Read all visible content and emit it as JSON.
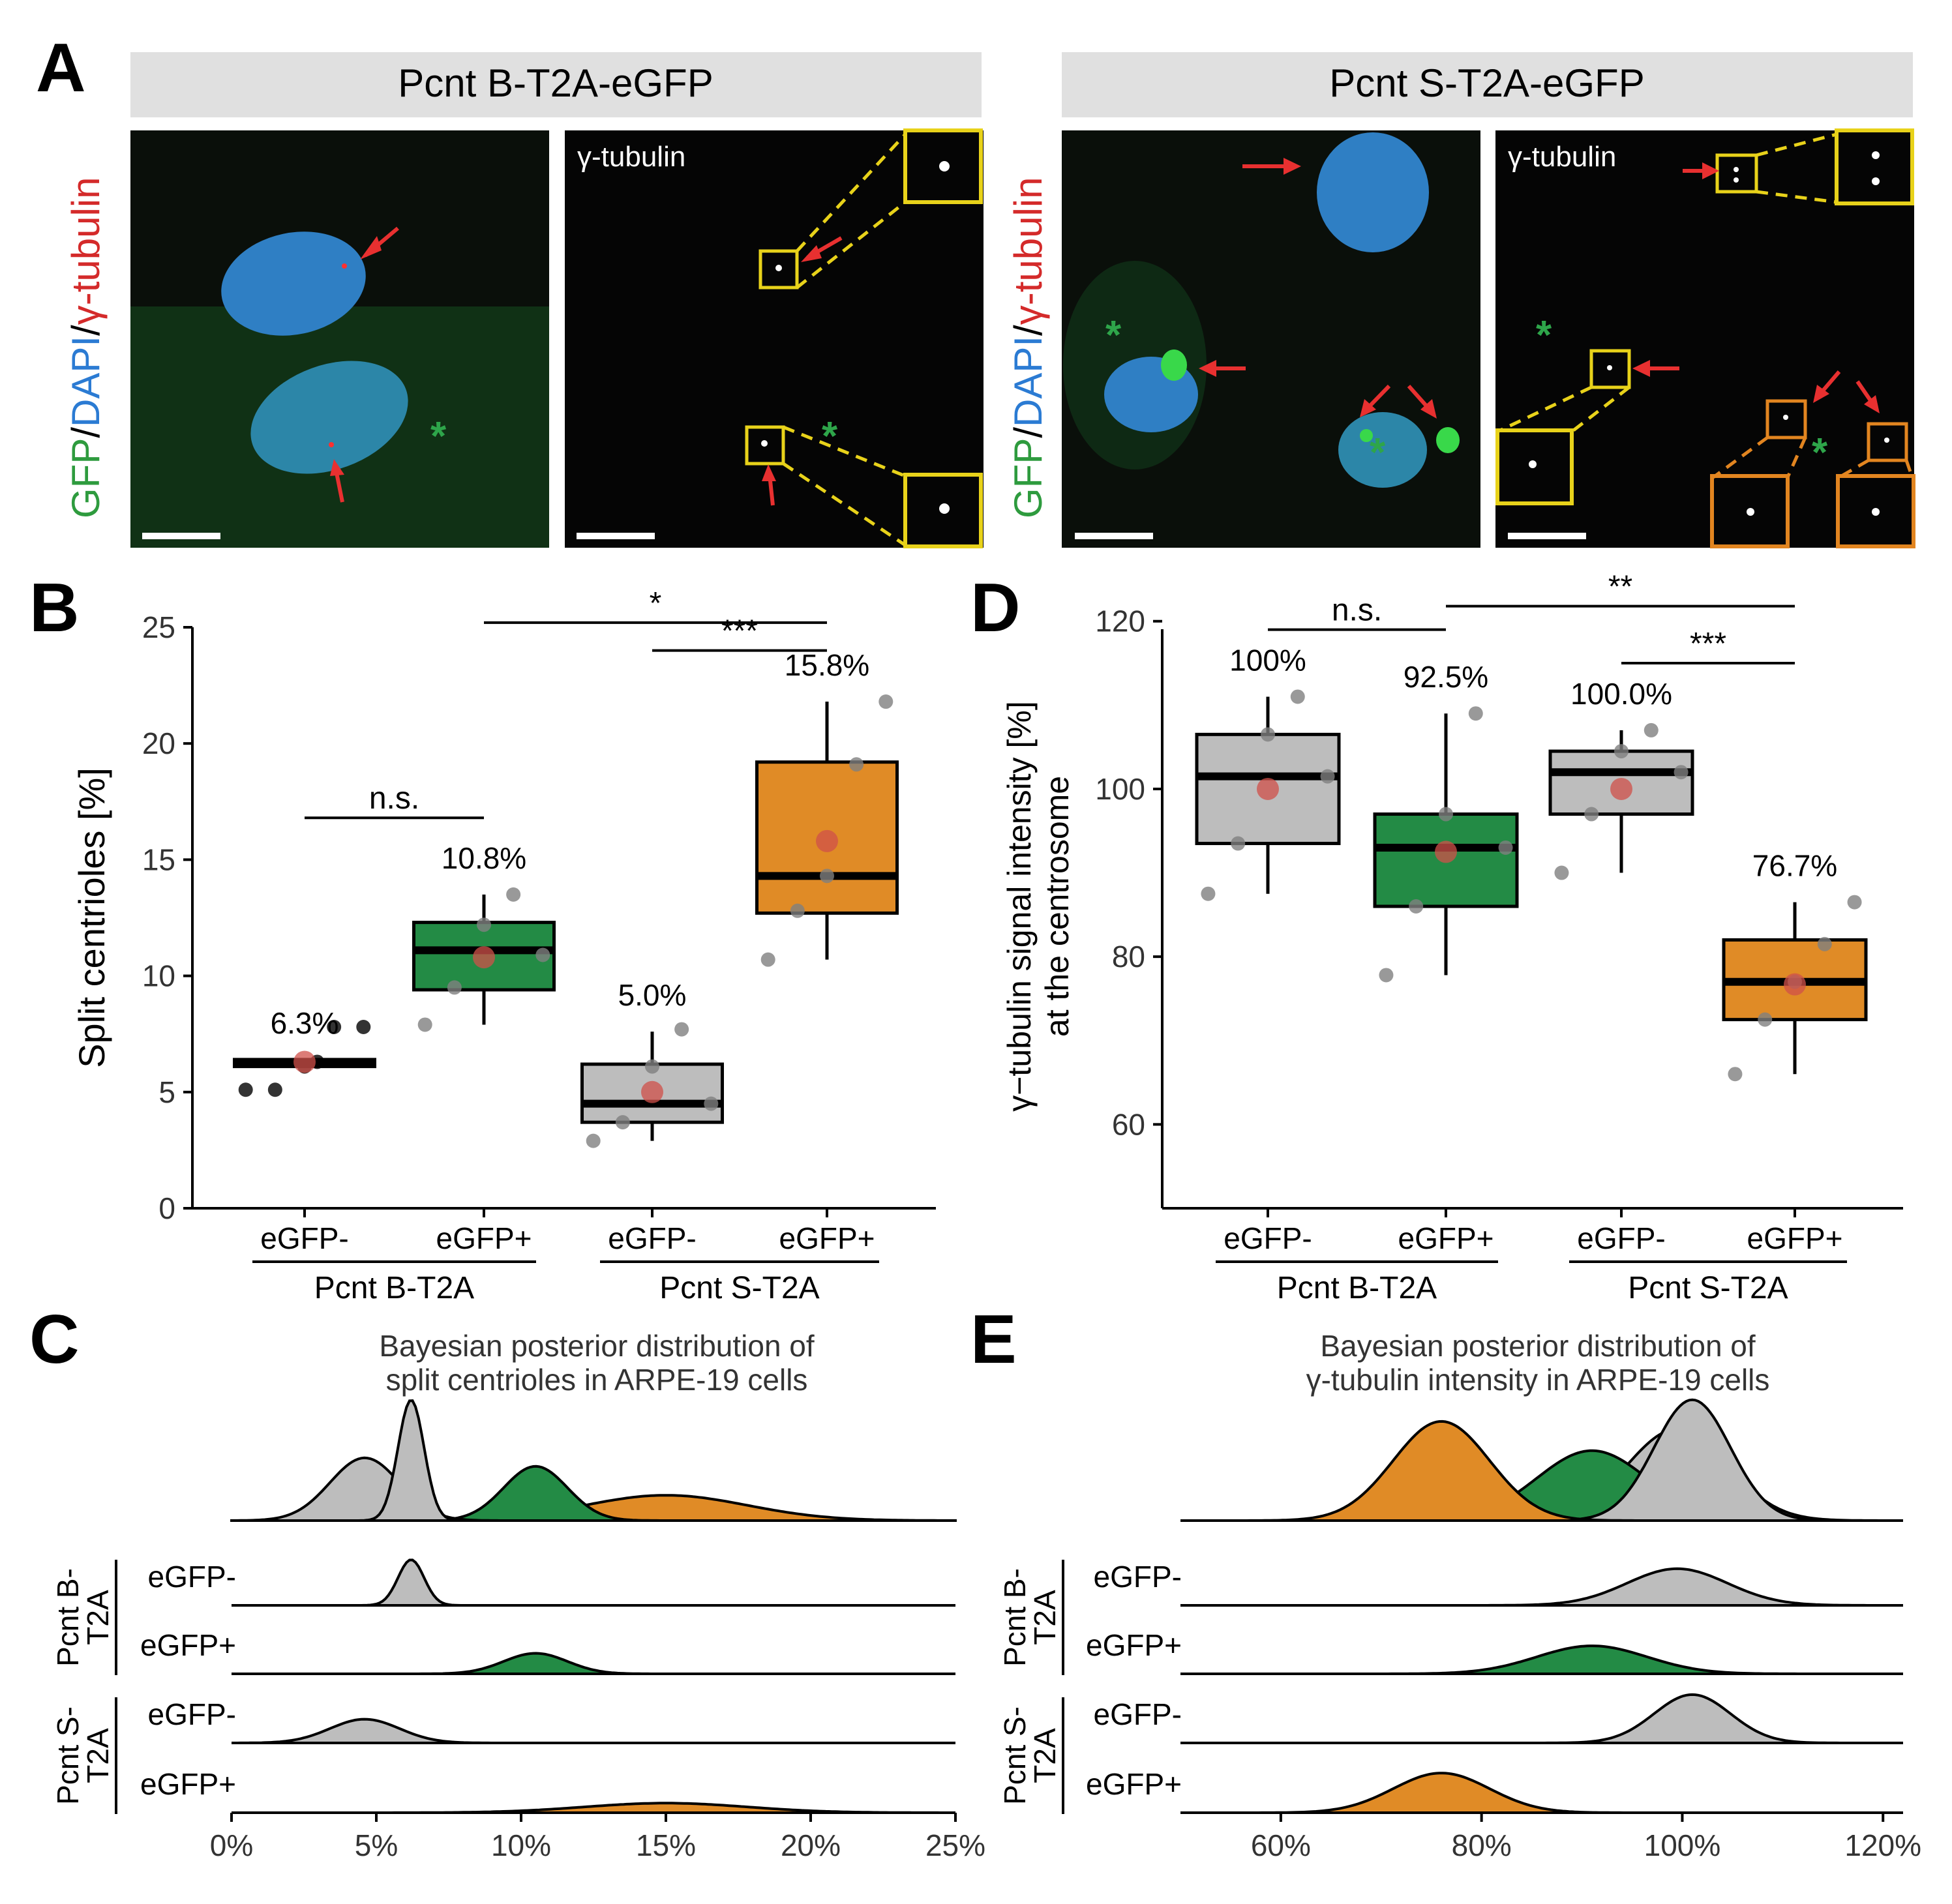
{
  "panel_a": {
    "letter": "A",
    "headers": [
      "Pcnt B-T2A-eGFP",
      "Pcnt S-T2A-eGFP"
    ],
    "side_label": {
      "green": "GFP",
      "sep1": "/",
      "blue": "DAPI",
      "sep2": "/",
      "red": "γ-tubulin"
    },
    "gamma_label": "γ-tubulin",
    "marker": "*"
  },
  "chart_data": [
    {
      "panel": "B",
      "type": "box",
      "ylabel": "Split centrioles [%]",
      "ylim": [
        0,
        25
      ],
      "yticks": [
        0,
        5,
        10,
        15,
        20,
        25
      ],
      "categories": [
        "eGFP-",
        "eGFP+",
        "eGFP-",
        "eGFP+"
      ],
      "groups": [
        "Pcnt B-T2A",
        "Pcnt S-T2A"
      ],
      "mean_labels": [
        "6.3%",
        "10.8%",
        "5.0%",
        "15.8%"
      ],
      "boxes": [
        {
          "q1": 6.1,
          "median": 6.2,
          "q3": 6.4,
          "whislo": 6.1,
          "whishi": 6.4,
          "mean": 6.3,
          "points": [
            5.1,
            5.1,
            6.1,
            7.8,
            7.8,
            6.3
          ],
          "color": "#000000"
        },
        {
          "q1": 9.4,
          "median": 11.1,
          "q3": 12.3,
          "whislo": 7.9,
          "whishi": 13.5,
          "mean": 10.8,
          "points": [
            7.9,
            9.5,
            12.2,
            13.5,
            10.9
          ],
          "color": "#238b45"
        },
        {
          "q1": 3.7,
          "median": 4.5,
          "q3": 6.2,
          "whislo": 2.9,
          "whishi": 7.6,
          "mean": 5.0,
          "points": [
            2.9,
            3.7,
            6.1,
            7.7,
            4.5
          ],
          "color": "#bdbdbd"
        },
        {
          "q1": 12.7,
          "median": 14.3,
          "q3": 19.2,
          "whislo": 10.7,
          "whishi": 21.8,
          "mean": 15.8,
          "points": [
            10.7,
            12.8,
            14.3,
            19.1,
            21.8
          ],
          "color": "#e08b26"
        }
      ],
      "significance": [
        {
          "from": 0,
          "to": 1,
          "y": 16.8,
          "label": "n.s."
        },
        {
          "from": 1,
          "to": 3,
          "y": 25.2,
          "label": "*"
        },
        {
          "from": 2,
          "to": 3,
          "y": 24.0,
          "label": "***"
        }
      ]
    },
    {
      "panel": "D",
      "type": "box",
      "ylabel_line1": "γ−tubulin signal intensity [%]",
      "ylabel_line2": "at the centrosome",
      "ylim": [
        50,
        122
      ],
      "yticks": [
        60,
        80,
        100,
        120
      ],
      "categories": [
        "eGFP-",
        "eGFP+",
        "eGFP-",
        "eGFP+"
      ],
      "groups": [
        "Pcnt B-T2A",
        "Pcnt S-T2A"
      ],
      "mean_labels": [
        "100%",
        "92.5%",
        "100.0%",
        "76.7%"
      ],
      "boxes": [
        {
          "q1": 93.5,
          "median": 101.5,
          "q3": 106.5,
          "whislo": 87.5,
          "whishi": 111.0,
          "mean": 100.0,
          "points": [
            87.5,
            93.5,
            106.5,
            111.0,
            101.5
          ],
          "color": "#bdbdbd"
        },
        {
          "q1": 86.0,
          "median": 93.0,
          "q3": 97.0,
          "whislo": 77.8,
          "whishi": 109.0,
          "mean": 92.5,
          "points": [
            77.8,
            86.0,
            97.0,
            109.0,
            93.0
          ],
          "color": "#238b45"
        },
        {
          "q1": 97.0,
          "median": 102.0,
          "q3": 104.5,
          "whislo": 90.0,
          "whishi": 107.0,
          "mean": 100.0,
          "points": [
            90.0,
            97.0,
            104.5,
            107.0,
            102.0
          ],
          "color": "#bdbdbd"
        },
        {
          "q1": 72.5,
          "median": 77.0,
          "q3": 82.0,
          "whislo": 66.0,
          "whishi": 86.5,
          "mean": 76.7,
          "points": [
            66.0,
            72.5,
            77.0,
            81.5,
            86.5
          ],
          "color": "#e08b26"
        }
      ],
      "significance": [
        {
          "from": 0,
          "to": 1,
          "y": 119.0,
          "label": "n.s."
        },
        {
          "from": 1,
          "to": 3,
          "y": 121.8,
          "label": "**"
        },
        {
          "from": 2,
          "to": 3,
          "y": 115.0,
          "label": "***"
        }
      ]
    },
    {
      "panel": "C",
      "type": "density",
      "title_line1": "Bayesian posterior distribution of",
      "title_line2": "split centrioles in ARPE-19 cells",
      "xlim": [
        0,
        25
      ],
      "xticks": [
        "0%",
        "5%",
        "10%",
        "15%",
        "20%",
        "25%"
      ],
      "row_groups": [
        {
          "line1": "Pcnt B-",
          "line2": "T2A"
        },
        {
          "line1": "Pcnt S-",
          "line2": "T2A"
        }
      ],
      "row_labels": [
        "eGFP-",
        "eGFP+",
        "eGFP-",
        "eGFP+"
      ],
      "series": [
        {
          "name": "B eGFP-",
          "mean": 6.2,
          "sd": 0.45,
          "height": 1.0,
          "color": "#bdbdbd"
        },
        {
          "name": "B eGFP+",
          "mean": 10.5,
          "sd": 1.1,
          "height": 0.45,
          "color": "#238b45"
        },
        {
          "name": "S eGFP-",
          "mean": 4.6,
          "sd": 1.2,
          "height": 0.52,
          "color": "#bdbdbd"
        },
        {
          "name": "S eGFP+",
          "mean": 15.0,
          "sd": 2.8,
          "height": 0.21,
          "color": "#e08b26"
        }
      ]
    },
    {
      "panel": "E",
      "type": "density",
      "title_line1": "Bayesian posterior distribution of",
      "title_line2": "γ-tubulin intensity in ARPE-19 cells",
      "xlim": [
        50,
        122
      ],
      "xticks": [
        "60%",
        "80%",
        "100%",
        "120%"
      ],
      "xtick_values": [
        60,
        80,
        100,
        120
      ],
      "row_groups": [
        {
          "line1": "Pcnt B-",
          "line2": "T2A"
        },
        {
          "line1": "Pcnt S-",
          "line2": "T2A"
        }
      ],
      "row_labels": [
        "eGFP-",
        "eGFP+",
        "eGFP-",
        "eGFP+"
      ],
      "series": [
        {
          "name": "B eGFP-",
          "mean": 99.5,
          "sd": 5.0,
          "height": 0.72,
          "color": "#bdbdbd"
        },
        {
          "name": "B eGFP+",
          "mean": 91.0,
          "sd": 5.5,
          "height": 0.55,
          "color": "#238b45"
        },
        {
          "name": "S eGFP-",
          "mean": 101.0,
          "sd": 3.8,
          "height": 0.95,
          "color": "#bdbdbd"
        },
        {
          "name": "S eGFP+",
          "mean": 76.0,
          "sd": 4.8,
          "height": 0.78,
          "color": "#e08b26"
        }
      ]
    }
  ],
  "letters": {
    "b": "B",
    "c": "C",
    "d": "D",
    "e": "E"
  }
}
